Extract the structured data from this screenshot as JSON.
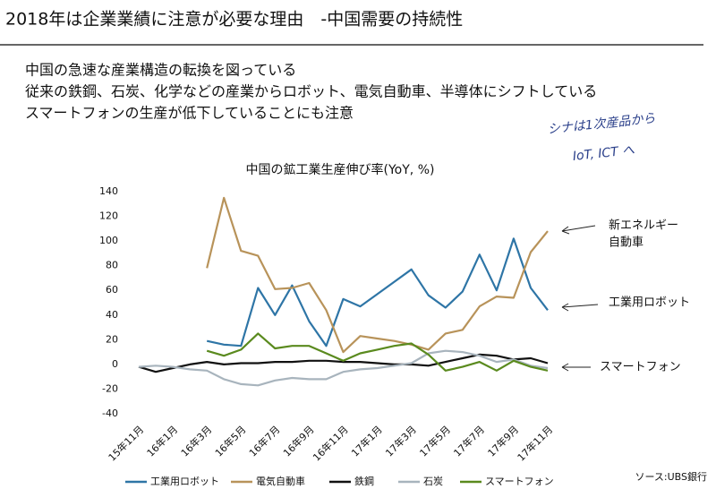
{
  "header": {
    "title": "2018年は企業業績に注意が必要な理由　-中国需要の持続性"
  },
  "bullets": [
    "中国の急速な産業構造の転換を図っている",
    "従来の鉄鋼、石炭、化学などの産業からロボット、電気自動車、半導体にシフトしている",
    "スマートフォンの生産が低下していることにも注意"
  ],
  "note": [
    "シナは1次産品から",
    "IoT, ICT へ"
  ],
  "source": "ソース:UBS銀行",
  "chart_data": {
    "type": "line",
    "title": "中国の鉱工業生産伸び率(YoY, %)",
    "categories": [
      "15年11月",
      null,
      "16年1月",
      null,
      "16年3月",
      null,
      "16年5月",
      null,
      "16年7月",
      null,
      "16年9月",
      null,
      "16年11月",
      null,
      "17年1月",
      null,
      "17年3月",
      null,
      "17年5月",
      null,
      "17年7月",
      null,
      "17年9月",
      null,
      "17年11月"
    ],
    "ylim": [
      -40,
      140
    ],
    "yticks": [
      -40,
      -20,
      0,
      20,
      40,
      60,
      80,
      100,
      120,
      140
    ],
    "series": [
      {
        "name": "工業用ロボット",
        "color": "#2e75a6",
        "values": [
          null,
          null,
          null,
          null,
          19,
          16,
          15,
          62,
          40,
          64,
          35,
          15,
          53,
          47,
          57,
          67,
          77,
          56,
          46,
          59,
          89,
          60,
          102,
          62,
          44
        ]
      },
      {
        "name": "電気自動車",
        "color": "#b8935a",
        "values": [
          null,
          null,
          null,
          null,
          78,
          135,
          92,
          88,
          61,
          62,
          66,
          44,
          10,
          23,
          21,
          19,
          16,
          12,
          25,
          28,
          47,
          55,
          54,
          91,
          108
        ]
      },
      {
        "name": "鉄鋼",
        "color": "#111111",
        "values": [
          -2,
          -6,
          -3,
          0,
          2,
          0,
          1,
          1,
          2,
          2,
          3,
          3,
          2,
          2,
          1,
          0,
          0,
          -1,
          2,
          5,
          8,
          7,
          4,
          5,
          1
        ]
      },
      {
        "name": "石炭",
        "color": "#a8b4bd",
        "values": [
          -2,
          -1,
          -2,
          -4,
          -5,
          -12,
          -16,
          -17,
          -13,
          -11,
          -12,
          -12,
          -6,
          -4,
          -3,
          -1,
          1,
          9,
          11,
          10,
          7,
          2,
          4,
          -1,
          -3
        ]
      },
      {
        "name": "スマートフォン",
        "color": "#5a8a1e",
        "values": [
          null,
          null,
          null,
          null,
          11,
          7,
          12,
          25,
          13,
          15,
          15,
          9,
          3,
          9,
          12,
          15,
          17,
          8,
          -5,
          -2,
          2,
          -5,
          3,
          -2,
          -5
        ]
      }
    ],
    "annotations": [
      {
        "lines": [
          "新エネルギー",
          "自動車"
        ]
      },
      {
        "lines": [
          "工業用ロボット"
        ]
      },
      {
        "lines": [
          "スマートフォン"
        ]
      }
    ]
  }
}
